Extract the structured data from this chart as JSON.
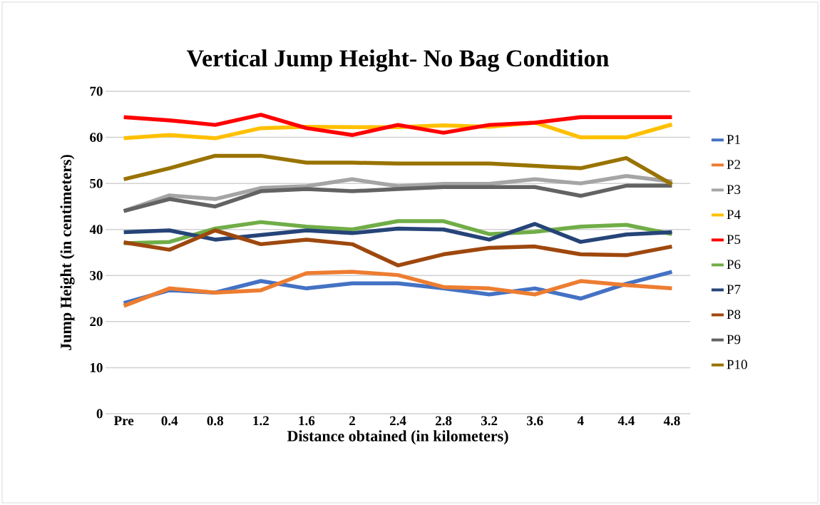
{
  "chart_data": {
    "type": "line",
    "title": "Vertical Jump Height- No Bag Condition",
    "xlabel": "Distance obtained (in kilometers)",
    "ylabel": "Jump Height (in centimeters)",
    "categories": [
      "Pre",
      "0.4",
      "0.8",
      "1.2",
      "1.6",
      "2",
      "2.4",
      "2.8",
      "3.2",
      "3.6",
      "4",
      "4.4",
      "4.8"
    ],
    "series": [
      {
        "name": "P1",
        "color": "#4472c4",
        "values": [
          24,
          26.8,
          26.3,
          28.8,
          27.2,
          28.3,
          28.3,
          27.2,
          25.9,
          27.2,
          25,
          28.2,
          30.8
        ]
      },
      {
        "name": "P2",
        "color": "#ed7d31",
        "values": [
          23.4,
          27.2,
          26.3,
          26.8,
          30.5,
          30.8,
          30.1,
          27.5,
          27.2,
          25.9,
          28.8,
          27.9,
          27.2
        ]
      },
      {
        "name": "P3",
        "color": "#a5a5a5",
        "values": [
          44,
          47.4,
          46.6,
          49,
          49.4,
          50.9,
          49.4,
          49.9,
          49.9,
          50.9,
          50,
          51.6,
          50.4
        ]
      },
      {
        "name": "P4",
        "color": "#ffc000",
        "values": [
          59.8,
          60.5,
          59.8,
          62,
          62.3,
          62.2,
          62.2,
          62.6,
          62.3,
          63.2,
          60,
          60,
          62.8
        ]
      },
      {
        "name": "P5",
        "color": "#ff0000",
        "values": [
          64.4,
          63.7,
          62.7,
          64.9,
          62,
          60.5,
          62.7,
          61,
          62.7,
          63.2,
          64.4,
          64.4,
          64.4
        ]
      },
      {
        "name": "P6",
        "color": "#70ad47",
        "values": [
          37,
          37.3,
          40.2,
          41.6,
          40.6,
          40,
          41.8,
          41.8,
          39,
          39.5,
          40.6,
          41,
          39
        ]
      },
      {
        "name": "P7",
        "color": "#264478",
        "values": [
          39.4,
          39.8,
          37.8,
          38.8,
          39.8,
          39.2,
          40.2,
          40,
          37.8,
          41.2,
          37.3,
          38.9,
          39.4
        ]
      },
      {
        "name": "P8",
        "color": "#9e480e",
        "values": [
          37.2,
          35.6,
          39.8,
          36.8,
          37.8,
          36.8,
          32.2,
          34.6,
          36,
          36.3,
          34.6,
          34.4,
          36.3
        ]
      },
      {
        "name": "P9",
        "color": "#636363",
        "values": [
          44,
          46.6,
          45,
          48.3,
          48.8,
          48.3,
          48.8,
          49.2,
          49.2,
          49.2,
          47.3,
          49.5,
          49.5
        ]
      },
      {
        "name": "P10",
        "color": "#997300",
        "values": [
          50.9,
          53.3,
          56,
          56,
          54.5,
          54.5,
          54.3,
          54.3,
          54.3,
          53.8,
          53.3,
          55.5,
          49.8
        ]
      }
    ],
    "ylim": [
      0,
      70
    ],
    "yticks": [
      0,
      10,
      20,
      30,
      40,
      50,
      60,
      70
    ],
    "grid": "y",
    "legend": "right",
    "marker": "none",
    "line_style": "solid"
  }
}
